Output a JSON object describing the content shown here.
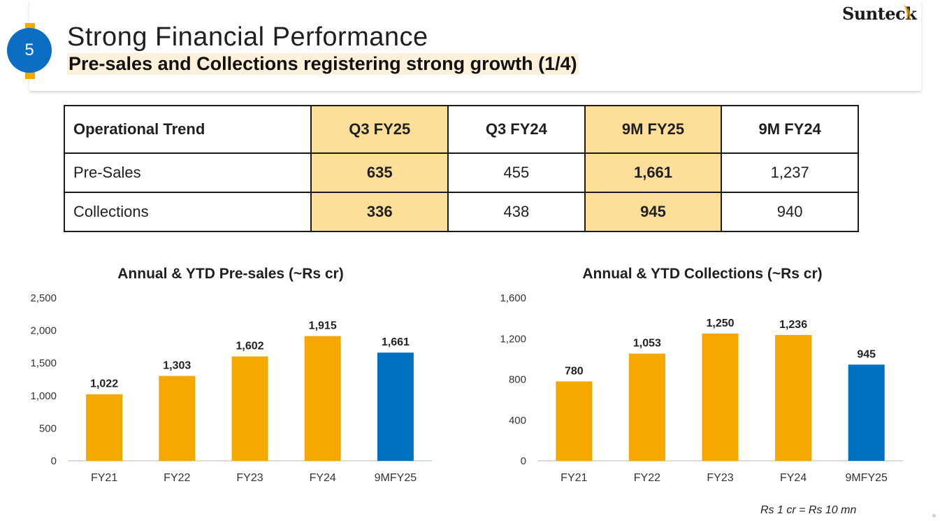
{
  "slide": {
    "number": "5",
    "title": "Strong Financial Performance",
    "subtitle": "Pre-sales and Collections registering strong growth (1/4)",
    "logo": "Sunteck",
    "footnote": "Rs 1 cr = Rs 10 mn"
  },
  "table": {
    "headers": [
      "Operational Trend",
      "Q3 FY25",
      "Q3 FY24",
      "9M FY25",
      "9M FY24"
    ],
    "rows": [
      {
        "label": "Pre-Sales",
        "values": [
          "635",
          "455",
          "1,661",
          "1,237"
        ]
      },
      {
        "label": "Collections",
        "values": [
          "336",
          "438",
          "945",
          "940"
        ]
      }
    ]
  },
  "colors": {
    "accent": "#f5a800",
    "bar_annual": "#f5a800",
    "bar_ytd": "#0070c0",
    "highlight_cell": "#fedf99",
    "badge": "#0a6fc2"
  },
  "chart_data": [
    {
      "type": "bar",
      "title": "Annual & YTD Pre-sales (~Rs cr)",
      "categories": [
        "FY21",
        "FY22",
        "FY23",
        "FY24",
        "9MFY25"
      ],
      "values": [
        1022,
        1303,
        1602,
        1915,
        1661
      ],
      "value_labels": [
        "1,022",
        "1,303",
        "1,602",
        "1,915",
        "1,661"
      ],
      "bar_colors": [
        "#f5a800",
        "#f5a800",
        "#f5a800",
        "#f5a800",
        "#0070c0"
      ],
      "ylim": [
        0,
        2500
      ],
      "yticks": [
        0,
        500,
        1000,
        1500,
        2000,
        2500
      ],
      "ytick_labels": [
        "0",
        "500",
        "1,000",
        "1,500",
        "2,000",
        "2,500"
      ],
      "grid": false,
      "xlabel": "",
      "ylabel": ""
    },
    {
      "type": "bar",
      "title": "Annual & YTD Collections (~Rs cr)",
      "categories": [
        "FY21",
        "FY22",
        "FY23",
        "FY24",
        "9MFY25"
      ],
      "values": [
        780,
        1053,
        1250,
        1236,
        945
      ],
      "value_labels": [
        "780",
        "1,053",
        "1,250",
        "1,236",
        "945"
      ],
      "bar_colors": [
        "#f5a800",
        "#f5a800",
        "#f5a800",
        "#f5a800",
        "#0070c0"
      ],
      "ylim": [
        0,
        1600
      ],
      "yticks": [
        0,
        400,
        800,
        1200,
        1600
      ],
      "ytick_labels": [
        "0",
        "400",
        "800",
        "1,200",
        "1,600"
      ],
      "grid": false,
      "xlabel": "",
      "ylabel": ""
    }
  ]
}
